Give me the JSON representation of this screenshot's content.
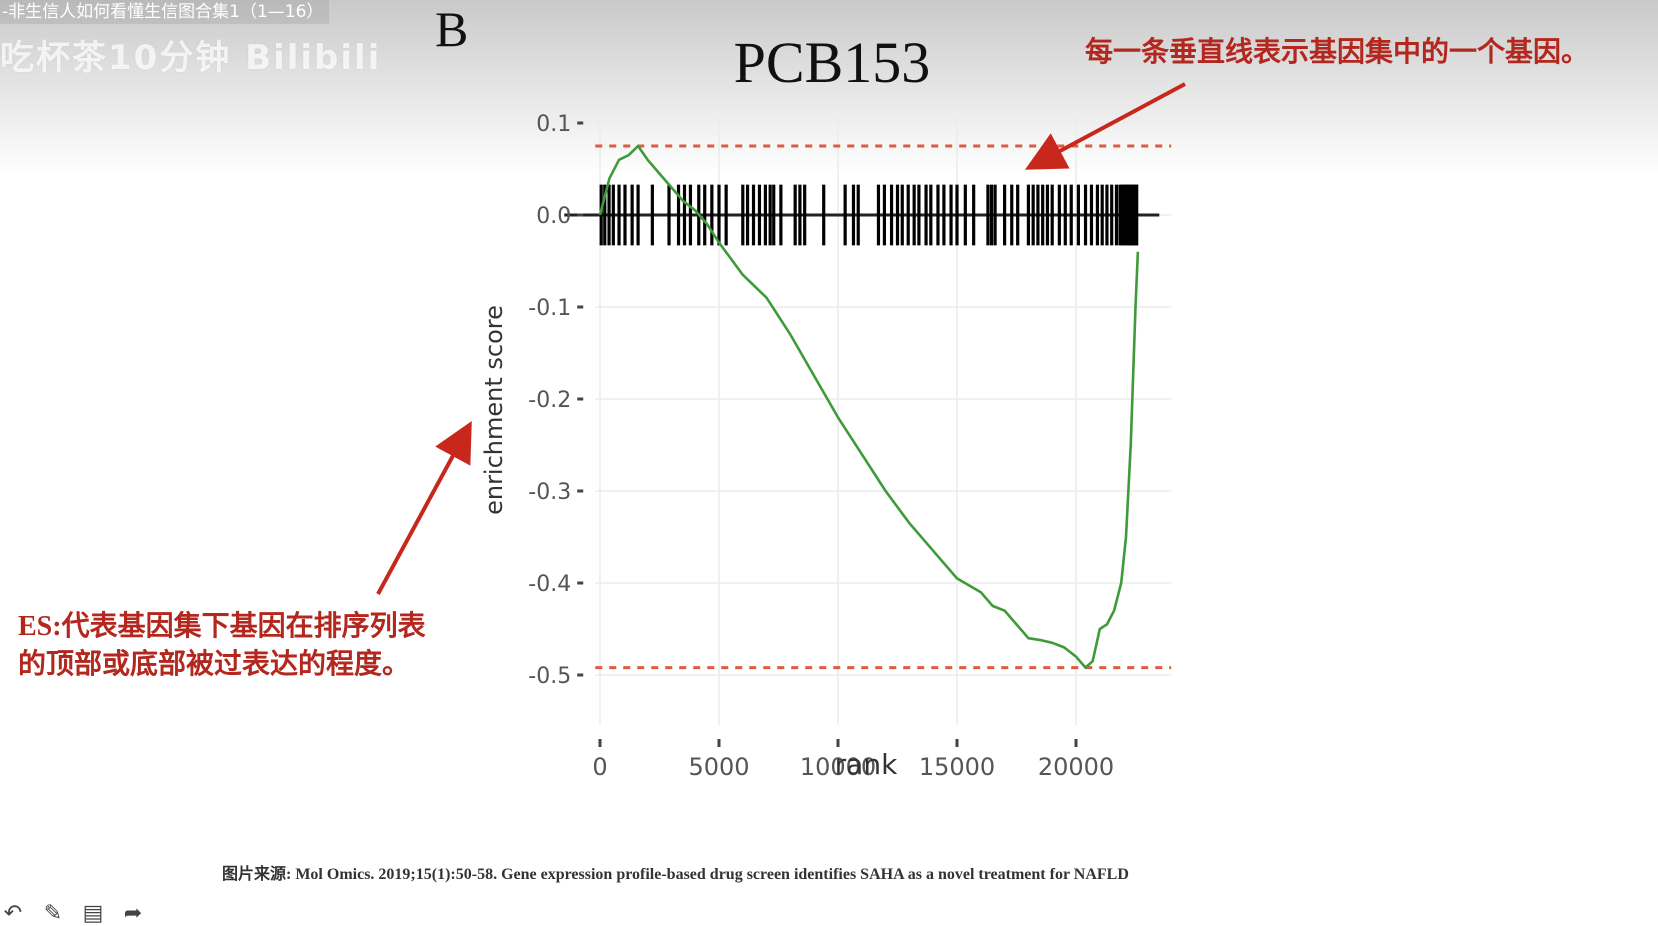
{
  "video": {
    "title": "-非生信人如何看懂生信图合集1（1—16）",
    "watermark": "吃杯茶10分钟 Bilibili"
  },
  "panel_label": "B",
  "annotations": {
    "right_note": "每一条垂直线表示基因集中的一个基因。",
    "left_note_line1": "ES:代表基因集下基因在排序列表",
    "left_note_line2": "的顶部或底部被过表达的程度。"
  },
  "caption": "图片来源: Mol Omics. 2019;15(1):50-58. Gene expression profile-based drug screen identifies SAHA as a novel treatment for NAFLD",
  "colors": {
    "curve": "#3f9a3a",
    "dashed": "#e05a3f",
    "annotation": "#b3271e",
    "ticks": "#000000"
  },
  "toolbar": {
    "icons": [
      "undo-icon",
      "pen-icon",
      "save-icon",
      "share-icon"
    ]
  },
  "chart_data": {
    "type": "line",
    "title": "PCB153",
    "xlabel": "rank",
    "ylabel": "enrichment score",
    "xlim": [
      -200,
      24000
    ],
    "ylim": [
      -0.55,
      0.1
    ],
    "x_ticks": [
      0,
      5000,
      10000,
      15000,
      20000
    ],
    "x_tick_labels": [
      "0",
      "5000",
      "10000",
      "15000",
      "20000"
    ],
    "y_ticks": [
      0.1,
      0.0,
      -0.1,
      -0.2,
      -0.3,
      -0.4,
      -0.5
    ],
    "y_tick_labels": [
      "0.1",
      "0.0",
      "-0.1",
      "-0.2",
      "-0.3",
      "-0.4",
      "-0.5"
    ],
    "grid": true,
    "reference_lines": [
      0.075,
      -0.492
    ],
    "series": [
      {
        "x": [
          0,
          400,
          800,
          1200,
          1600,
          2000,
          2500,
          3000,
          3500,
          4000,
          4500,
          5000,
          6000,
          7000,
          8000,
          9000,
          10000,
          11000,
          12000,
          13000,
          14000,
          15000,
          16000,
          16500,
          17000,
          17500,
          18000,
          18500,
          19000,
          19500,
          20000,
          20400,
          20700,
          21000,
          21300,
          21600,
          21900,
          22100,
          22300,
          22500,
          22600
        ],
        "y": [
          0.0,
          0.04,
          0.06,
          0.065,
          0.075,
          0.06,
          0.045,
          0.03,
          0.015,
          0.005,
          -0.01,
          -0.03,
          -0.065,
          -0.09,
          -0.13,
          -0.175,
          -0.22,
          -0.26,
          -0.3,
          -0.335,
          -0.365,
          -0.395,
          -0.41,
          -0.425,
          -0.43,
          -0.445,
          -0.46,
          -0.462,
          -0.465,
          -0.47,
          -0.48,
          -0.492,
          -0.485,
          -0.45,
          -0.445,
          -0.43,
          -0.4,
          -0.35,
          -0.25,
          -0.1,
          -0.04
        ]
      }
    ],
    "gene_hits": [
      50,
      200,
      380,
      560,
      800,
      1050,
      1350,
      1600,
      2200,
      2900,
      3300,
      3550,
      3800,
      4150,
      4400,
      4700,
      5000,
      5300,
      6000,
      6200,
      6450,
      6700,
      6950,
      7150,
      7300,
      7600,
      8200,
      8400,
      8600,
      9400,
      10300,
      10650,
      10850,
      11700,
      11950,
      12250,
      12500,
      12700,
      12950,
      13200,
      13400,
      13700,
      13900,
      14200,
      14450,
      14750,
      15000,
      15350,
      15700,
      16300,
      16450,
      16600,
      17000,
      17300,
      17550,
      18000,
      18200,
      18400,
      18600,
      18800,
      19000,
      19300,
      19550,
      19800,
      20100,
      20400,
      20650,
      20900,
      21100,
      21300,
      21500,
      21700,
      21850,
      21950,
      22050,
      22150,
      22250,
      22350,
      22450,
      22550
    ]
  }
}
